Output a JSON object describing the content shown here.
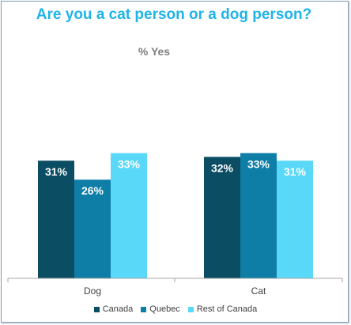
{
  "chart_data": {
    "type": "bar",
    "title": "Are you a cat person or a dog person?",
    "subtitle": "% Yes",
    "categories": [
      "Dog",
      "Cat"
    ],
    "series": [
      {
        "name": "Canada",
        "values": [
          31,
          32
        ],
        "color": "#0b4d63"
      },
      {
        "name": "Quebec",
        "values": [
          26,
          33
        ],
        "color": "#0e7ea6"
      },
      {
        "name": "Rest of Canada",
        "values": [
          33,
          31
        ],
        "color": "#5ad8f8"
      }
    ],
    "data_labels": [
      [
        "31%",
        "32%"
      ],
      [
        "26%",
        "33%"
      ],
      [
        "33%",
        "31%"
      ]
    ],
    "ylim": [
      0,
      50
    ],
    "grid": false,
    "legend": "bottom"
  }
}
